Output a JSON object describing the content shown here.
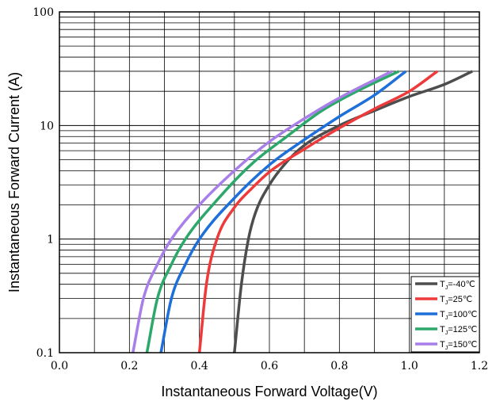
{
  "chart_data": {
    "type": "line",
    "xlabel": "Instantaneous Forward Voltage(V)",
    "ylabel": "Instantaneous Forward Current (A)",
    "xlim": [
      0.0,
      1.2
    ],
    "ylim": [
      0.1,
      100
    ],
    "y_scale": "log",
    "grid": true,
    "legend_position": "bottom-right",
    "x_ticks": [
      "0.0",
      "0.2",
      "0.4",
      "0.6",
      "0.8",
      "1.0",
      "1.2"
    ],
    "y_ticks": [
      "0.1",
      "1",
      "10",
      "100"
    ],
    "series": [
      {
        "name": "Tⱼ=-40℃",
        "legend_main": "T",
        "legend_sub": "J",
        "legend_rest": "=-40℃",
        "color": "#4d4d4d",
        "points": [
          [
            0.5,
            0.1
          ],
          [
            0.52,
            0.4
          ],
          [
            0.54,
            1.0
          ],
          [
            0.56,
            1.7
          ],
          [
            0.6,
            3.0
          ],
          [
            0.65,
            4.8
          ],
          [
            0.7,
            6.7
          ],
          [
            0.8,
            10.0
          ],
          [
            0.9,
            13.5
          ],
          [
            1.0,
            18.0
          ],
          [
            1.1,
            23.0
          ],
          [
            1.18,
            30.0
          ]
        ]
      },
      {
        "name": "Tⱼ=25℃",
        "legend_main": "T",
        "legend_sub": "J",
        "legend_rest": "=25℃",
        "color": "#ee3a3a",
        "points": [
          [
            0.4,
            0.1
          ],
          [
            0.42,
            0.4
          ],
          [
            0.45,
            1.0
          ],
          [
            0.5,
            1.9
          ],
          [
            0.55,
            2.8
          ],
          [
            0.6,
            3.9
          ],
          [
            0.7,
            6.2
          ],
          [
            0.8,
            9.5
          ],
          [
            0.9,
            14.0
          ],
          [
            1.0,
            20.0
          ],
          [
            1.08,
            30.0
          ]
        ]
      },
      {
        "name": "Tⱼ=100℃",
        "legend_main": "T",
        "legend_sub": "J",
        "legend_rest": "=100℃",
        "color": "#1e6fd9",
        "points": [
          [
            0.29,
            0.1
          ],
          [
            0.32,
            0.3
          ],
          [
            0.36,
            0.6
          ],
          [
            0.4,
            1.0
          ],
          [
            0.5,
            2.3
          ],
          [
            0.6,
            4.5
          ],
          [
            0.7,
            7.5
          ],
          [
            0.8,
            12.0
          ],
          [
            0.9,
            18.5
          ],
          [
            0.99,
            30.0
          ]
        ]
      },
      {
        "name": "Tⱼ=125℃",
        "legend_main": "T",
        "legend_sub": "J",
        "legend_rest": "=125℃",
        "color": "#2da86b",
        "points": [
          [
            0.25,
            0.1
          ],
          [
            0.28,
            0.3
          ],
          [
            0.32,
            0.6
          ],
          [
            0.36,
            1.0
          ],
          [
            0.45,
            2.2
          ],
          [
            0.55,
            4.6
          ],
          [
            0.65,
            8.0
          ],
          [
            0.75,
            13.5
          ],
          [
            0.85,
            20.0
          ],
          [
            0.97,
            30.0
          ]
        ]
      },
      {
        "name": "Tⱼ=150℃",
        "legend_main": "T",
        "legend_sub": "J",
        "legend_rest": "=150℃",
        "color": "#a87ee8",
        "points": [
          [
            0.21,
            0.1
          ],
          [
            0.24,
            0.3
          ],
          [
            0.28,
            0.6
          ],
          [
            0.32,
            1.0
          ],
          [
            0.4,
            2.0
          ],
          [
            0.5,
            4.0
          ],
          [
            0.6,
            7.2
          ],
          [
            0.7,
            11.5
          ],
          [
            0.8,
            17.5
          ],
          [
            0.95,
            30.0
          ]
        ]
      }
    ]
  }
}
